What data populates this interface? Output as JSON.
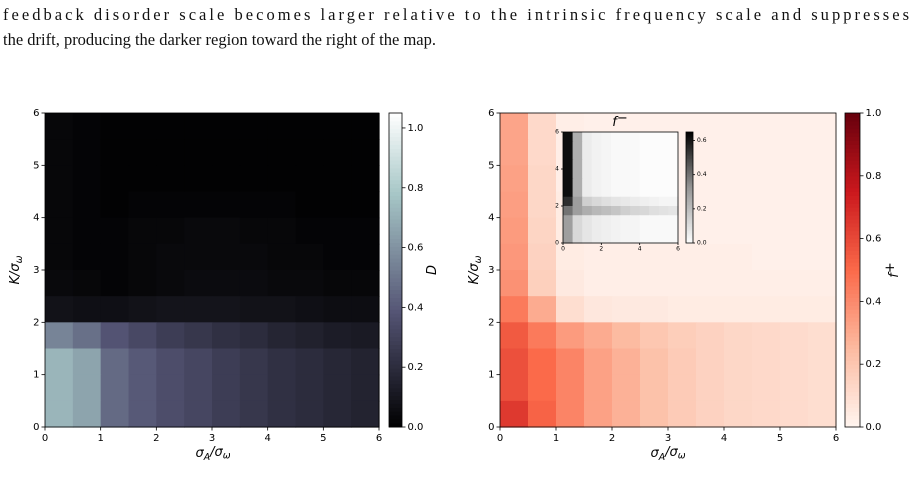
{
  "text": {
    "lines": [
      "feedback disorder scale becomes larger relative to the intrinsic frequency scale and suppresses",
      "the drift, producing the darker region toward the right of the map."
    ]
  },
  "chart_data": [
    {
      "type": "heatmap",
      "cmap": "bone",
      "xlabel": [
        "σ",
        "A",
        "/σ",
        "ω"
      ],
      "ylabel": [
        "K/σ",
        "ω"
      ],
      "colorbar_label": [
        "D"
      ],
      "xlim": [
        0,
        6
      ],
      "ylim": [
        0,
        6
      ],
      "xticks": [
        0,
        1,
        2,
        3,
        4,
        5,
        6
      ],
      "yticks": [
        0,
        1,
        2,
        3,
        4,
        5,
        6
      ],
      "clim": [
        0,
        1.05
      ],
      "cticks": [
        {
          "value": 0,
          "label": "0.0"
        },
        {
          "value": 0.2,
          "label": "0.2"
        },
        {
          "value": 0.4,
          "label": "0.4"
        },
        {
          "value": 0.6,
          "label": "0.6"
        },
        {
          "value": 0.8,
          "label": "0.8"
        },
        {
          "value": 1,
          "label": "1.0"
        }
      ],
      "z": [
        [
          0.03,
          0.02,
          0.01,
          0.01,
          0.01,
          0.01,
          0.01,
          0.01,
          0.01,
          0.01,
          0.01,
          0.01
        ],
        [
          0.03,
          0.02,
          0.01,
          0.01,
          0.01,
          0.01,
          0.01,
          0.01,
          0.01,
          0.01,
          0.01,
          0.01
        ],
        [
          0.03,
          0.02,
          0.01,
          0.01,
          0.01,
          0.01,
          0.01,
          0.01,
          0.01,
          0.01,
          0.01,
          0.01
        ],
        [
          0.03,
          0.02,
          0.01,
          0.02,
          0.02,
          0.02,
          0.02,
          0.02,
          0.02,
          0.01,
          0.01,
          0.01
        ],
        [
          0.03,
          0.02,
          0.02,
          0.03,
          0.03,
          0.04,
          0.04,
          0.03,
          0.03,
          0.02,
          0.02,
          0.02
        ],
        [
          0.03,
          0.02,
          0.02,
          0.03,
          0.04,
          0.04,
          0.04,
          0.04,
          0.03,
          0.03,
          0.02,
          0.02
        ],
        [
          0.04,
          0.03,
          0.02,
          0.03,
          0.04,
          0.05,
          0.05,
          0.05,
          0.04,
          0.04,
          0.03,
          0.03
        ],
        [
          0.08,
          0.07,
          0.07,
          0.08,
          0.09,
          0.09,
          0.09,
          0.08,
          0.08,
          0.07,
          0.06,
          0.06
        ],
        [
          0.55,
          0.48,
          0.38,
          0.33,
          0.28,
          0.25,
          0.22,
          0.2,
          0.17,
          0.15,
          0.13,
          0.12
        ],
        [
          0.72,
          0.66,
          0.46,
          0.4,
          0.35,
          0.32,
          0.28,
          0.25,
          0.22,
          0.2,
          0.18,
          0.16
        ],
        [
          0.72,
          0.66,
          0.46,
          0.4,
          0.35,
          0.32,
          0.28,
          0.25,
          0.22,
          0.2,
          0.18,
          0.16
        ],
        [
          0.72,
          0.66,
          0.46,
          0.4,
          0.35,
          0.32,
          0.28,
          0.25,
          0.22,
          0.2,
          0.18,
          0.16
        ]
      ]
    },
    {
      "type": "heatmap",
      "cmap": "Reds",
      "xlabel": [
        "σ",
        "A",
        "/σ",
        "ω"
      ],
      "ylabel": [
        "K/σ",
        "ω"
      ],
      "colorbar_label": [
        "f",
        "+"
      ],
      "xlim": [
        0,
        6
      ],
      "ylim": [
        0,
        6
      ],
      "xticks": [
        0,
        1,
        2,
        3,
        4,
        5,
        6
      ],
      "yticks": [
        0,
        1,
        2,
        3,
        4,
        5,
        6
      ],
      "clim": [
        0,
        1
      ],
      "cticks": [
        {
          "value": 0,
          "label": "0.0"
        },
        {
          "value": 0.2,
          "label": "0.2"
        },
        {
          "value": 0.4,
          "label": "0.4"
        },
        {
          "value": 0.6,
          "label": "0.6"
        },
        {
          "value": 0.8,
          "label": "0.8"
        },
        {
          "value": 1,
          "label": "1.0"
        }
      ],
      "z": [
        [
          0.32,
          0.12,
          0.03,
          0.02,
          0.02,
          0.02,
          0.02,
          0.02,
          0.02,
          0.02,
          0.02,
          0.02
        ],
        [
          0.32,
          0.12,
          0.03,
          0.02,
          0.02,
          0.02,
          0.02,
          0.02,
          0.02,
          0.02,
          0.02,
          0.02
        ],
        [
          0.33,
          0.13,
          0.03,
          0.02,
          0.02,
          0.02,
          0.02,
          0.02,
          0.02,
          0.02,
          0.02,
          0.02
        ],
        [
          0.34,
          0.13,
          0.04,
          0.02,
          0.02,
          0.02,
          0.02,
          0.02,
          0.02,
          0.02,
          0.02,
          0.02
        ],
        [
          0.35,
          0.14,
          0.04,
          0.03,
          0.02,
          0.02,
          0.02,
          0.02,
          0.02,
          0.02,
          0.02,
          0.02
        ],
        [
          0.36,
          0.15,
          0.04,
          0.03,
          0.03,
          0.03,
          0.03,
          0.03,
          0.03,
          0.02,
          0.02,
          0.02
        ],
        [
          0.38,
          0.16,
          0.05,
          0.03,
          0.03,
          0.03,
          0.03,
          0.03,
          0.03,
          0.03,
          0.03,
          0.03
        ],
        [
          0.45,
          0.3,
          0.1,
          0.06,
          0.05,
          0.05,
          0.04,
          0.04,
          0.04,
          0.04,
          0.04,
          0.04
        ],
        [
          0.55,
          0.45,
          0.35,
          0.3,
          0.25,
          0.2,
          0.17,
          0.15,
          0.13,
          0.12,
          0.11,
          0.1
        ],
        [
          0.58,
          0.5,
          0.42,
          0.33,
          0.28,
          0.22,
          0.18,
          0.15,
          0.13,
          0.12,
          0.11,
          0.1
        ],
        [
          0.58,
          0.5,
          0.42,
          0.33,
          0.28,
          0.22,
          0.18,
          0.15,
          0.13,
          0.12,
          0.11,
          0.1
        ],
        [
          0.65,
          0.52,
          0.42,
          0.33,
          0.28,
          0.22,
          0.18,
          0.15,
          0.13,
          0.12,
          0.11,
          0.1
        ]
      ]
    },
    {
      "type": "heatmap",
      "cmap": "Greys",
      "title": [
        "f",
        "−"
      ],
      "xlim": [
        0,
        6
      ],
      "ylim": [
        0,
        6
      ],
      "xticks": [
        0,
        2,
        4,
        6
      ],
      "yticks": [
        0,
        2,
        4,
        6
      ],
      "clim": [
        0,
        0.65
      ],
      "cticks": [
        {
          "value": 0,
          "label": "0.0"
        },
        {
          "value": 0.2,
          "label": "0.2"
        },
        {
          "value": 0.4,
          "label": "0.4"
        },
        {
          "value": 0.6,
          "label": "0.6"
        }
      ],
      "z": [
        [
          0.62,
          0.25,
          0.06,
          0.04,
          0.03,
          0.02,
          0.02,
          0.02,
          0.01,
          0.01,
          0.01,
          0.01
        ],
        [
          0.62,
          0.25,
          0.06,
          0.04,
          0.03,
          0.02,
          0.02,
          0.02,
          0.01,
          0.01,
          0.01,
          0.01
        ],
        [
          0.62,
          0.25,
          0.06,
          0.04,
          0.03,
          0.02,
          0.02,
          0.02,
          0.01,
          0.01,
          0.01,
          0.01
        ],
        [
          0.62,
          0.25,
          0.06,
          0.04,
          0.03,
          0.02,
          0.02,
          0.02,
          0.01,
          0.01,
          0.01,
          0.01
        ],
        [
          0.62,
          0.25,
          0.06,
          0.04,
          0.03,
          0.02,
          0.02,
          0.02,
          0.01,
          0.01,
          0.01,
          0.01
        ],
        [
          0.62,
          0.25,
          0.06,
          0.04,
          0.03,
          0.02,
          0.02,
          0.02,
          0.01,
          0.01,
          0.01,
          0.01
        ],
        [
          0.62,
          0.25,
          0.06,
          0.04,
          0.03,
          0.02,
          0.02,
          0.02,
          0.01,
          0.01,
          0.01,
          0.01
        ],
        [
          0.55,
          0.3,
          0.15,
          0.12,
          0.1,
          0.08,
          0.07,
          0.06,
          0.05,
          0.04,
          0.03,
          0.03
        ],
        [
          0.4,
          0.3,
          0.25,
          0.22,
          0.2,
          0.18,
          0.15,
          0.13,
          0.12,
          0.1,
          0.09,
          0.08
        ],
        [
          0.3,
          0.12,
          0.08,
          0.06,
          0.05,
          0.04,
          0.03,
          0.03,
          0.02,
          0.02,
          0.02,
          0.02
        ],
        [
          0.3,
          0.12,
          0.08,
          0.06,
          0.05,
          0.04,
          0.03,
          0.03,
          0.02,
          0.02,
          0.02,
          0.02
        ],
        [
          0.3,
          0.12,
          0.08,
          0.06,
          0.05,
          0.04,
          0.03,
          0.03,
          0.02,
          0.02,
          0.02,
          0.02
        ]
      ]
    }
  ]
}
